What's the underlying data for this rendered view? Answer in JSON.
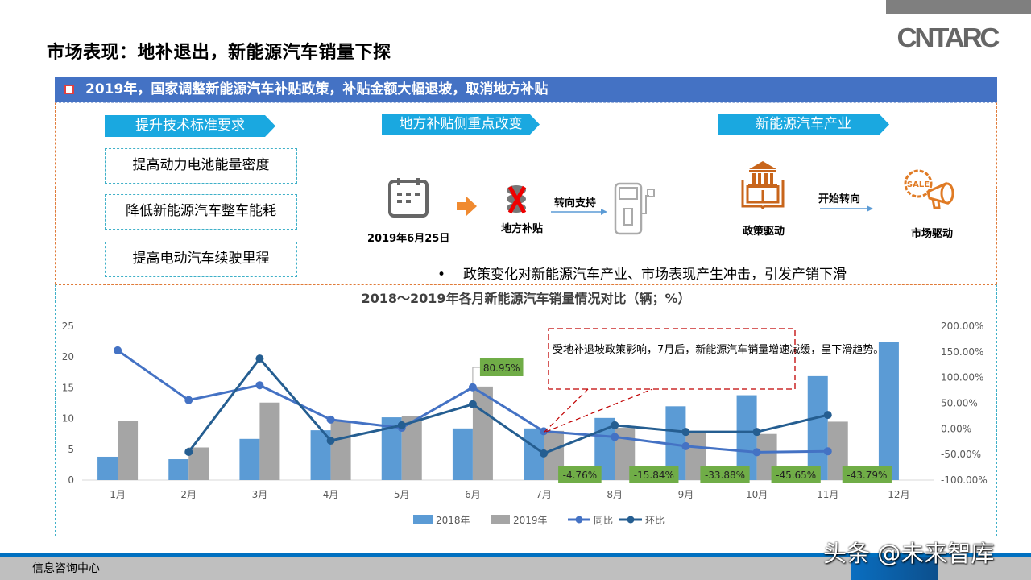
{
  "header": {
    "title": "市场表现：地补退出，新能源汽车销量下探",
    "logo": "CNTARC",
    "banner": "2019年，国家调整新能源汽车补贴政策，补贴金额大幅退坡，取消地方补贴"
  },
  "sections": {
    "tech": {
      "tag": "提升技术标准要求",
      "items": [
        "提高动力电池能量密度",
        "降低新能源汽车整车能耗",
        "提高电动汽车续驶里程"
      ]
    },
    "local": {
      "tag": "地方补贴侧重点改变",
      "date_label": "2019年6月25日",
      "subsidy_label": "地方补贴",
      "arrow_label": "转向支持"
    },
    "industry": {
      "tag": "新能源汽车产业",
      "policy_label": "政策驱动",
      "arrow_label": "开始转向",
      "market_label": "市场驱动",
      "sale_badge": "SALE"
    },
    "bullet": "政策变化对新能源汽车产业、市场表现产生冲击，引发产销下滑"
  },
  "chart_data": {
    "type": "bar+line",
    "title": "2018～2019年各月新能源汽车销量情况对比（辆；%）",
    "categories": [
      "1月",
      "2月",
      "3月",
      "4月",
      "5月",
      "6月",
      "7月",
      "8月",
      "9月",
      "10月",
      "11月",
      "12月"
    ],
    "y_left": {
      "range": [
        0,
        25
      ],
      "ticks": [
        "0",
        "5",
        "10",
        "15",
        "20",
        "25"
      ]
    },
    "y_right": {
      "range": [
        -100,
        200
      ],
      "ticks": [
        "-100.00%",
        "-50.00%",
        "0.00%",
        "50.00%",
        "100.00%",
        "150.00%",
        "200.00%"
      ]
    },
    "grid": false,
    "legend_position": "bottom",
    "series": [
      {
        "name": "2018年",
        "type": "bar",
        "axis": "left",
        "color": "#5B9BD5",
        "values": [
          3.8,
          3.4,
          6.7,
          8.1,
          10.2,
          8.4,
          8.4,
          10.1,
          12.0,
          13.8,
          16.9,
          22.5
        ]
      },
      {
        "name": "2019年",
        "type": "bar",
        "axis": "left",
        "color": "#A5A5A5",
        "values": [
          9.6,
          5.3,
          12.6,
          9.7,
          10.4,
          15.2,
          8.0,
          8.5,
          7.9,
          7.5,
          9.5,
          null
        ]
      },
      {
        "name": "同比",
        "type": "line",
        "axis": "right",
        "color": "#4472C4",
        "values": [
          153,
          56,
          85,
          18,
          2,
          80.95,
          -4.76,
          -15.84,
          -33.88,
          -45.65,
          -43.79,
          null
        ]
      },
      {
        "name": "环比",
        "type": "line",
        "axis": "right",
        "color": "#255E91",
        "values": [
          null,
          -45,
          137,
          -23,
          7,
          48,
          -48,
          7,
          -6,
          -6,
          27,
          null
        ]
      }
    ],
    "data_labels": [
      {
        "month": "6月",
        "text": "80.95%"
      },
      {
        "month": "7月",
        "text": "-4.76%"
      },
      {
        "month": "8月",
        "text": "-15.84%"
      },
      {
        "month": "9月",
        "text": "-33.88%"
      },
      {
        "month": "10月",
        "text": "-45.65%"
      },
      {
        "month": "11月",
        "text": "-43.79%"
      }
    ],
    "label_color": "#70AD47",
    "annotation": "受地补退坡政策影响，7月后，新能源汽车销量增速减缓，呈下滑趋势。"
  },
  "footer": {
    "text": "信息咨询中心",
    "watermark": "头条 @未来智库"
  }
}
